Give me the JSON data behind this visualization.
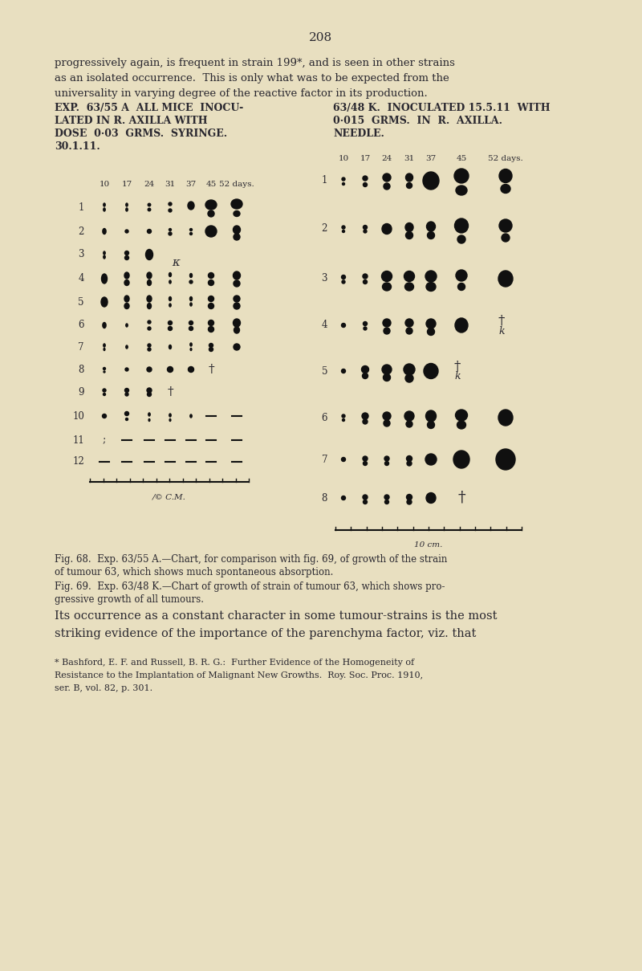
{
  "bg_color": "#e8dfc0",
  "page_number": "208",
  "intro_text_lines": [
    "progressively again, is frequent in strain 199*, and is seen in other strains",
    "as an isolated occurrence.  This is only what was to be expected from the",
    "universality in varying degree of the reactive factor in its production."
  ],
  "left_title_lines": [
    "EXP.  63/55 A  ALL MICE  INOCU-",
    "LATED IN R. AXILLA WITH",
    "DOSE  0·03  GRMS.  SYRINGE.",
    "30.1.11."
  ],
  "right_title_lines": [
    "63/48 K.  INOCULATED 15.5.11  WITH",
    "0·015  GRMS.  IN  R.  AXILLA.",
    "NEEDLE."
  ],
  "days_labels": [
    "10",
    "17",
    "24",
    "31",
    "37",
    "45",
    "52 days."
  ],
  "fig68_line1": "Fig. 68.  Exp. 63/55 A.—Chart, for comparison with fig. 69, of growth of the strain",
  "fig68_line2": "of tumour 63, which shows much spontaneous absorption.",
  "fig69_line1": "Fig. 69.  Exp. 63/48 K.—Chart of growth of strain of tumour 63, which shows pro-",
  "fig69_line2": "gressive growth of all tumours.",
  "body_line1": "Its occurrence as a constant character in some tumour-strains is the most",
  "body_line2": "striking evidence of the importance of the parenchyma factor, viz. that",
  "footnote_lines": [
    "* Bashford, E. F. and Russell, B. R. G.:  Further Evidence of the Homogeneity of",
    "Resistance to the Implantation of Malignant New Growths.  Roy. Soc. Proc. 1910,",
    "ser. B, vol. 82, p. 301."
  ],
  "tc": "#2a2830",
  "dc": "#101010"
}
